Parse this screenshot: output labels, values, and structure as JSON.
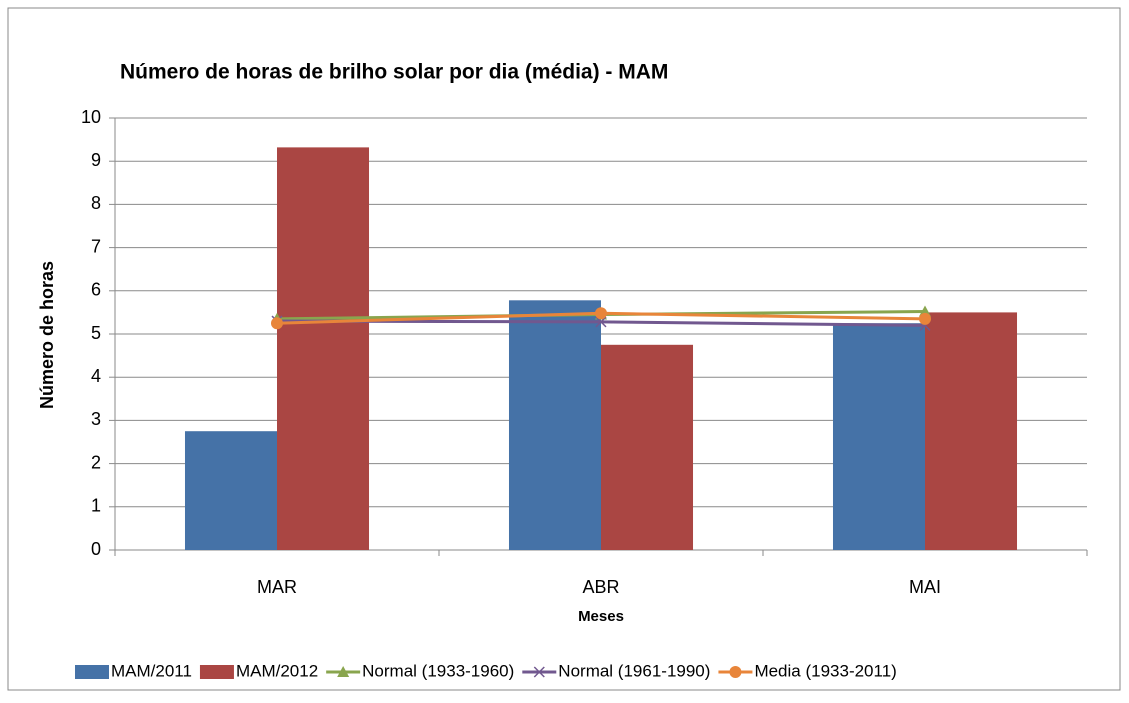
{
  "chart_data": {
    "type": "bar",
    "title": "Número de horas de brilho solar por dia (média) - MAM",
    "x_label": "Meses",
    "y_label": "Número de horas",
    "categories": [
      "MAR",
      "ABR",
      "MAI"
    ],
    "series": [
      {
        "name": "MAM/2011",
        "type": "bar",
        "color": "#4572a7",
        "values": [
          2.75,
          5.78,
          5.25
        ]
      },
      {
        "name": "MAM/2012",
        "type": "bar",
        "color": "#aa4643",
        "values": [
          9.32,
          4.75,
          5.5
        ]
      },
      {
        "name": "Normal (1933-1960)",
        "type": "line",
        "marker": "triangle",
        "color": "#89a54e",
        "values": [
          5.35,
          5.45,
          5.52
        ]
      },
      {
        "name": "Normal (1961-1990)",
        "type": "line",
        "marker": "x",
        "color": "#71588f",
        "values": [
          5.3,
          5.28,
          5.2
        ]
      },
      {
        "name": "Media (1933-2011)",
        "type": "line",
        "marker": "circle",
        "color": "#e8853a",
        "values": [
          5.25,
          5.48,
          5.35
        ]
      }
    ],
    "ylim": [
      0,
      10
    ],
    "yticks": [
      0,
      1,
      2,
      3,
      4,
      5,
      6,
      7,
      8,
      9,
      10
    ],
    "grid": true,
    "legend": "bottom"
  }
}
